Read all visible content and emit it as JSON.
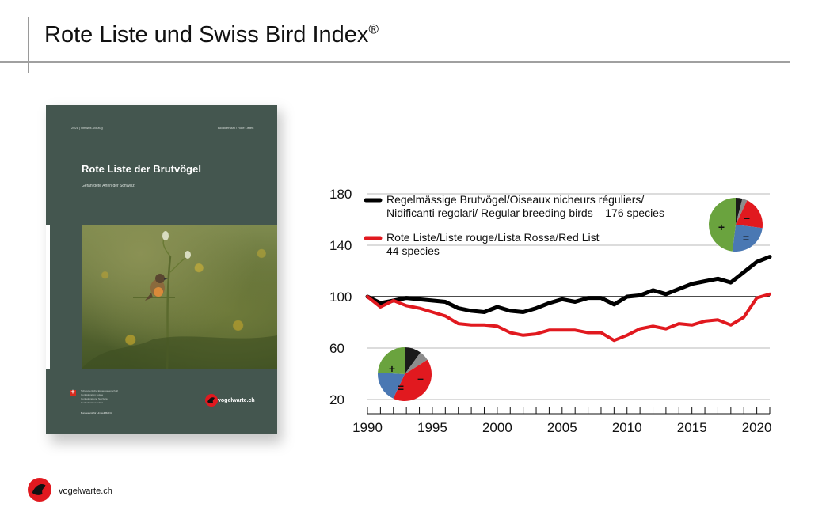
{
  "slide": {
    "title": "Rote Liste und Swiss Bird Index",
    "title_mark": "®"
  },
  "book": {
    "top_left": "2021 | Umwelt-Vollzug",
    "top_right": "Biodiversität / Rote Listen",
    "title": "Rote Liste der Brutvögel",
    "subtitle": "Gefährdete Arten der Schweiz",
    "federal_lines": [
      "Schweizerische Eidgenossenschaft",
      "Confédération suisse",
      "Confederazione Svizzera",
      "Confederaziun svizra"
    ],
    "footer": "Bundesamt für Umwelt BAFU",
    "logo_text": "vogelwarte.ch"
  },
  "footer": {
    "logo_text": "vogelwarte.ch"
  },
  "colors": {
    "regular": "#000000",
    "red_list": "#e1191f",
    "pie_green": "#6aa33e",
    "pie_red": "#e1191f",
    "pie_blue": "#4a78b3",
    "pie_black": "#1a1a1a",
    "pie_grey": "#8c8c8c",
    "book_bg": "#44564f"
  },
  "chart_data": {
    "type": "line",
    "title": "",
    "xlabel": "",
    "ylabel": "",
    "xlim": [
      1990,
      2021
    ],
    "ylim": [
      20,
      180
    ],
    "x_ticks": [
      1990,
      1995,
      2000,
      2005,
      2010,
      2015,
      2020
    ],
    "y_ticks": [
      20,
      60,
      100,
      140,
      180
    ],
    "grid": "horizontal",
    "reference_line": 100,
    "legend_position": "top-left",
    "x": [
      1990,
      1991,
      1992,
      1993,
      1994,
      1995,
      1996,
      1997,
      1998,
      1999,
      2000,
      2001,
      2002,
      2003,
      2004,
      2005,
      2006,
      2007,
      2008,
      2009,
      2010,
      2011,
      2012,
      2013,
      2014,
      2015,
      2016,
      2017,
      2018,
      2019,
      2020,
      2021
    ],
    "series": [
      {
        "name": "Regelmässige Brutvögel/Oiseaux nicheurs réguliers/ Nidificanti regolari/ Regular breeding birds – 176 species",
        "legend_lines": [
          "Regelmässige Brutvögel/Oiseaux nicheurs réguliers/",
          "Nidificanti regolari/ Regular breeding birds – 176 species"
        ],
        "color": "#000000",
        "values": [
          100,
          95,
          97,
          99,
          98,
          97,
          96,
          91,
          89,
          88,
          92,
          89,
          88,
          91,
          95,
          98,
          96,
          99,
          99,
          94,
          100,
          101,
          105,
          102,
          106,
          110,
          112,
          114,
          111,
          119,
          127,
          131
        ]
      },
      {
        "name": "Rote Liste/Liste rouge/Lista Rossa/Red List 44 species",
        "legend_lines": [
          "Rote Liste/Liste rouge/Lista Rossa/Red List",
          "44 species"
        ],
        "color": "#e1191f",
        "values": [
          100,
          92,
          97,
          93,
          91,
          88,
          85,
          79,
          78,
          78,
          77,
          72,
          70,
          71,
          74,
          74,
          74,
          72,
          72,
          66,
          70,
          75,
          77,
          75,
          79,
          78,
          81,
          82,
          78,
          84,
          99,
          102
        ]
      }
    ],
    "pies": [
      {
        "name": "regular",
        "labels": [
          "+",
          "–",
          "="
        ],
        "slices": [
          {
            "label": "+",
            "value": 48,
            "color": "#6aa33e"
          },
          {
            "label": "–",
            "value": 20,
            "color": "#e1191f"
          },
          {
            "label": "=",
            "value": 25,
            "color": "#4a78b3"
          },
          {
            "label": "",
            "value": 4,
            "color": "#1a1a1a"
          },
          {
            "label": "",
            "value": 3,
            "color": "#8c8c8c"
          }
        ]
      },
      {
        "name": "red-list",
        "labels": [
          "+",
          "–",
          "="
        ],
        "slices": [
          {
            "label": "+",
            "value": 24,
            "color": "#6aa33e"
          },
          {
            "label": "–",
            "value": 41,
            "color": "#e1191f"
          },
          {
            "label": "=",
            "value": 19,
            "color": "#4a78b3"
          },
          {
            "label": "",
            "value": 10,
            "color": "#1a1a1a"
          },
          {
            "label": "",
            "value": 6,
            "color": "#8c8c8c"
          }
        ]
      }
    ]
  }
}
